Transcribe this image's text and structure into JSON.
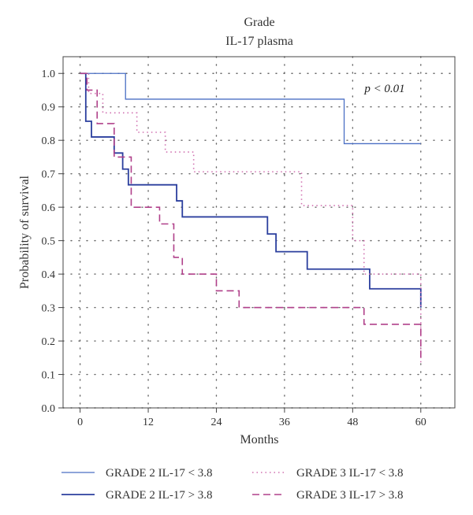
{
  "chart_data": {
    "type": "line",
    "step": true,
    "title": "Grade",
    "subtitle": "IL-17 plasma",
    "xlabel": "Months",
    "ylabel": "Probability of survival",
    "annotation": "p < 0.01",
    "xlim": [
      -3,
      66
    ],
    "ylim": [
      0,
      1.05
    ],
    "xticks": [
      0,
      12,
      24,
      36,
      48,
      60
    ],
    "yticks": [
      0.0,
      0.1,
      0.2,
      0.3,
      0.4,
      0.5,
      0.6,
      0.7,
      0.8,
      0.9,
      1.0
    ],
    "xtick_labels": [
      "0",
      "12",
      "24",
      "36",
      "48",
      "60"
    ],
    "ytick_labels": [
      "0.0",
      "0.1",
      "0.2",
      "0.3",
      "0.4",
      "0.5",
      "0.6",
      "0.7",
      "0.8",
      "0.9",
      "1.0"
    ],
    "grid": true,
    "legend_position": "bottom",
    "series": [
      {
        "name": "GRADE 2 IL-17 < 3.8",
        "color": "#4a6fc4",
        "style": "solid-thin",
        "x": [
          0,
          8,
          46.5,
          60
        ],
        "y": [
          1.0,
          0.923,
          0.79,
          0.79
        ]
      },
      {
        "name": "GRADE 2 IL-17 > 3.8",
        "color": "#2b3f9e",
        "style": "solid",
        "x": [
          0,
          1,
          2,
          4,
          6,
          7.5,
          8.5,
          17,
          18,
          33,
          34.5,
          40,
          51,
          60
        ],
        "y": [
          1.0,
          0.857,
          0.81,
          0.81,
          0.762,
          0.714,
          0.667,
          0.619,
          0.571,
          0.52,
          0.467,
          0.415,
          0.356,
          0.3
        ]
      },
      {
        "name": "GRADE 3 IL-17 < 3.8",
        "color": "#d070b0",
        "style": "dotted",
        "x": [
          0,
          1.5,
          4,
          10,
          15,
          20,
          39,
          48,
          50,
          60
        ],
        "y": [
          1.0,
          0.94,
          0.882,
          0.824,
          0.765,
          0.706,
          0.605,
          0.5,
          0.4,
          0.13
        ]
      },
      {
        "name": "GRADE 3 IL-17 > 3.8",
        "color": "#b0408a",
        "style": "dashed",
        "x": [
          0,
          1.2,
          3,
          6,
          9,
          14,
          16.5,
          18,
          20,
          24,
          28,
          50,
          60
        ],
        "y": [
          1.0,
          0.95,
          0.85,
          0.75,
          0.6,
          0.55,
          0.45,
          0.4,
          0.4,
          0.35,
          0.3,
          0.25,
          0.15
        ]
      }
    ]
  }
}
